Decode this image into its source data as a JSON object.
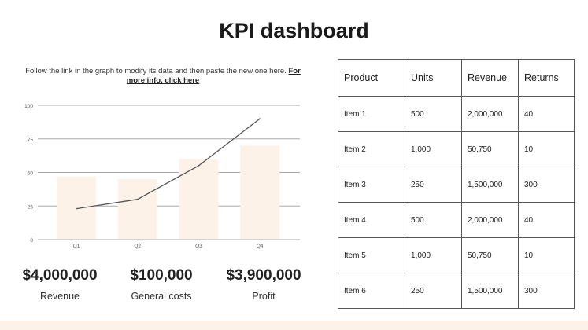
{
  "title": "KPI dashboard",
  "note": {
    "text": "Follow the link in the graph to modify its data and then paste the new one here. ",
    "link": "For more info, click here"
  },
  "chart_data": {
    "type": "bar",
    "categories": [
      "Q1",
      "Q2",
      "Q3",
      "Q4"
    ],
    "ylim": [
      0,
      100
    ],
    "yticks": [
      0,
      25,
      50,
      75,
      100
    ],
    "grid": true,
    "series": [
      {
        "type": "bar",
        "values": [
          47,
          45,
          60,
          70
        ],
        "color": "#fcf2e8"
      },
      {
        "type": "line",
        "values": [
          23,
          30,
          55,
          90
        ],
        "color": "#555555"
      }
    ]
  },
  "kpis": [
    {
      "value": "$4,000,000",
      "label": "Revenue"
    },
    {
      "value": "$100,000",
      "label": "General costs"
    },
    {
      "value": "$3,900,000",
      "label": "Profit"
    }
  ],
  "table": {
    "headers": [
      "Product",
      "Units",
      "Revenue",
      "Returns"
    ],
    "rows": [
      [
        "Item 1",
        "500",
        "2,000,000",
        "40"
      ],
      [
        "Item 2",
        "1,000",
        "50,750",
        "10"
      ],
      [
        "Item 3",
        "250",
        "1,500,000",
        "300"
      ],
      [
        "Item 4",
        "500",
        "2,000,000",
        "40"
      ],
      [
        "Item 5",
        "1,000",
        "50,750",
        "10"
      ],
      [
        "Item 6",
        "250",
        "1,500,000",
        "300"
      ]
    ]
  }
}
